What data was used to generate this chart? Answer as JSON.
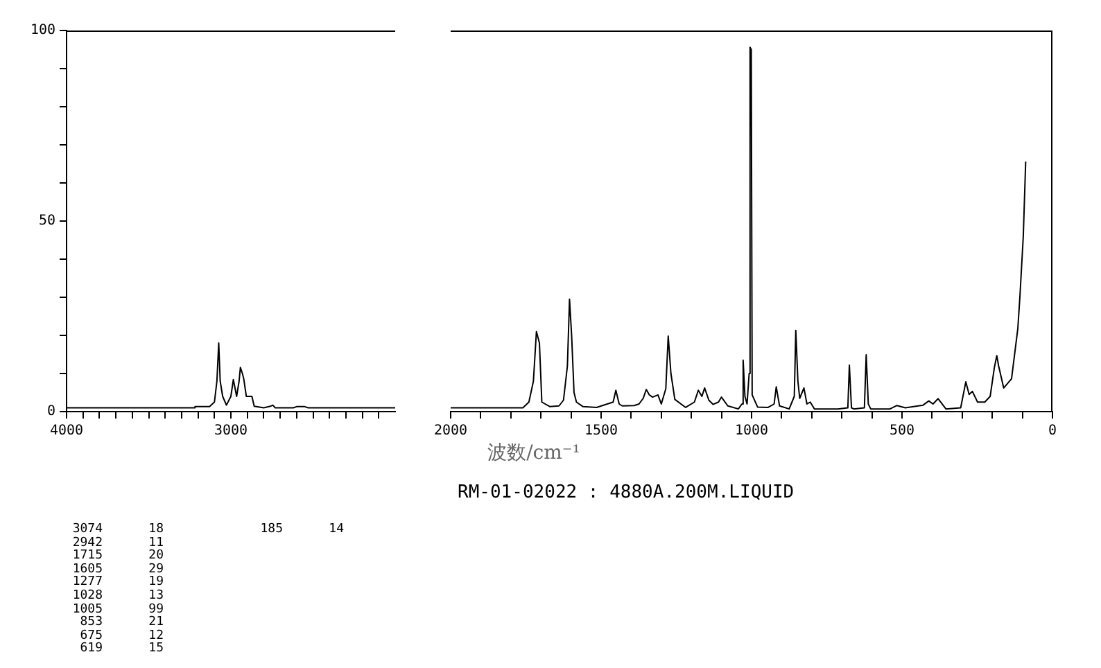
{
  "chart_data": [
    {
      "type": "line",
      "xlim": [
        4000,
        2000
      ],
      "xticks": [
        4000,
        {
          "value": 3900,
          "label": null
        },
        {
          "value": 3800,
          "label": null
        },
        {
          "value": 3700,
          "label": null
        },
        {
          "value": 3600,
          "label": null
        },
        {
          "value": 3500,
          "label": null
        },
        {
          "value": 3400,
          "label": null
        },
        {
          "value": 3300,
          "label": null
        },
        {
          "value": 3200,
          "label": null
        },
        {
          "value": 3100,
          "label": null
        },
        3000,
        {
          "value": 2900,
          "label": null
        },
        {
          "value": 2800,
          "label": null
        },
        {
          "value": 2700,
          "label": null
        },
        {
          "value": 2600,
          "label": null
        },
        {
          "value": 2500,
          "label": null
        },
        {
          "value": 2400,
          "label": null
        },
        {
          "value": 2300,
          "label": null
        },
        {
          "value": 2200,
          "label": null
        },
        {
          "value": 2100,
          "label": null
        }
      ],
      "ylim": [
        0,
        100
      ],
      "yticks": [
        0,
        {
          "value": 10,
          "label": null
        },
        {
          "value": 20,
          "label": null
        },
        {
          "value": 30,
          "label": null
        },
        {
          "value": 40,
          "label": null
        },
        50,
        {
          "value": 60,
          "label": null
        },
        {
          "value": 70,
          "label": null
        },
        {
          "value": 80,
          "label": null
        },
        {
          "value": 90,
          "label": null
        },
        100
      ],
      "grid": false,
      "legend": false,
      "marker": "none",
      "line_style": "solid",
      "series": [
        {
          "color": "#000000",
          "x": [
            4000,
            3220,
            3218,
            3130,
            3100,
            3085,
            3074,
            3065,
            3050,
            3027,
            3000,
            2985,
            2965,
            2950,
            2942,
            2930,
            2922,
            2906,
            2872,
            2858,
            2800,
            2760,
            2745,
            2730,
            2620,
            2600,
            2550,
            2530,
            2000
          ],
          "values": [
            1,
            1,
            1.3,
            1.3,
            2.5,
            8,
            18,
            8,
            4,
            1.7,
            4,
            8.4,
            4,
            8,
            11.6,
            10,
            8.7,
            4,
            4,
            1.4,
            1,
            1.4,
            1.7,
            1,
            1,
            1.3,
            1.3,
            1,
            1
          ]
        }
      ]
    },
    {
      "type": "line",
      "title": "RM-01-02022 : 4880A.200M.LIQUID",
      "xlabel": "波数/cm⁻¹",
      "xlim": [
        2000,
        0
      ],
      "xticks": [
        2000,
        {
          "value": 1900,
          "label": null
        },
        {
          "value": 1800,
          "label": null
        },
        {
          "value": 1700,
          "label": null
        },
        {
          "value": 1600,
          "label": null
        },
        1500,
        {
          "value": 1400,
          "label": null
        },
        {
          "value": 1300,
          "label": null
        },
        {
          "value": 1200,
          "label": null
        },
        {
          "value": 1100,
          "label": null
        },
        1000,
        {
          "value": 900,
          "label": null
        },
        {
          "value": 800,
          "label": null
        },
        {
          "value": 700,
          "label": null
        },
        {
          "value": 600,
          "label": null
        },
        500,
        {
          "value": 400,
          "label": null
        },
        {
          "value": 300,
          "label": null
        },
        {
          "value": 200,
          "label": null
        },
        {
          "value": 100,
          "label": null
        },
        0
      ],
      "ylim": [
        0,
        100
      ],
      "tick_labels": "x",
      "grid": false,
      "legend": false,
      "marker": "none",
      "line_style": "solid",
      "series": [
        {
          "color": "#000000",
          "x": [
            2000,
            1760,
            1740,
            1725,
            1715,
            1705,
            1697,
            1670,
            1640,
            1625,
            1612,
            1605,
            1598,
            1590,
            1582,
            1560,
            1515,
            1460,
            1451,
            1440,
            1430,
            1390,
            1374,
            1360,
            1350,
            1340,
            1329,
            1311,
            1300,
            1285,
            1277,
            1268,
            1255,
            1219,
            1190,
            1177,
            1165,
            1156,
            1142,
            1128,
            1110,
            1100,
            1079,
            1044,
            1032,
            1028,
            1022,
            1015,
            1008,
            1005,
            1001,
            998,
            980,
            945,
            925,
            918,
            907,
            875,
            858,
            853,
            846,
            840,
            826,
            816,
            805,
            791,
            713,
            680,
            675,
            668,
            660,
            625,
            619,
            612,
            604,
            540,
            517,
            489,
            430,
            411,
            397,
            380,
            354,
            305,
            288,
            277,
            266,
            249,
            225,
            207,
            193,
            185,
            179,
            162,
            136,
            115,
            108,
            97,
            89
          ],
          "values": [
            1,
            1,
            2.5,
            8,
            21,
            18,
            2.5,
            1.3,
            1.5,
            3,
            12,
            29.5,
            20,
            5,
            2.5,
            1.3,
            1.1,
            2.5,
            5.6,
            2,
            1.5,
            1.6,
            2,
            3.5,
            5.8,
            4.4,
            3.8,
            4.4,
            2,
            6,
            19.8,
            10,
            3.2,
            1.1,
            2.5,
            5.6,
            4,
            6.2,
            3,
            1.9,
            2.5,
            3.8,
            1.5,
            0.7,
            2,
            13.5,
            4,
            2,
            10,
            95.6,
            95,
            4.4,
            1.2,
            1.1,
            2,
            6.5,
            1.5,
            0.7,
            4,
            21.3,
            8,
            3.5,
            6.2,
            2,
            2.5,
            0.7,
            0.7,
            1,
            12.2,
            1,
            0.7,
            1,
            14.9,
            2,
            0.7,
            0.7,
            1.6,
            1,
            1.7,
            2.8,
            2,
            3.4,
            0.7,
            1,
            7.8,
            4.5,
            5.3,
            2.5,
            2.5,
            4,
            11.6,
            14.7,
            12,
            6.2,
            8.6,
            21.9,
            30.4,
            46,
            65.6
          ]
        }
      ],
      "annotations": [
        "3074 18",
        "2942 11",
        "1715 20",
        "1605 29",
        "1277 19",
        "1028 13",
        "1005 99",
        "853 21",
        "675 12",
        "619 15",
        "185 14"
      ]
    }
  ]
}
